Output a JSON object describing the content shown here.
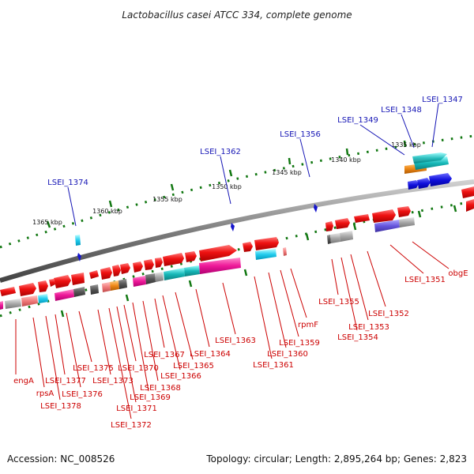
{
  "title": "Lactobacillus casei ATCC 334, complete genome",
  "accession": "Accession: NC_008526",
  "summary": "Topology: circular; Length: 2,895,264 bp; Genes: 2,823",
  "colors": {
    "forward_gene": "#ee1111",
    "label_blue": "#1515b5",
    "label_red": "#cc0000",
    "backbone": "#808080",
    "scale_green": "#117711"
  },
  "scale_labels": [
    "1335 kbp",
    "1340 kbp",
    "1345 kbp",
    "1350 kbp",
    "1355 kbp",
    "1360 kbp",
    "1365 kbp"
  ],
  "top_labels": [
    "LSEI_1347",
    "LSEI_1348",
    "LSEI_1349",
    "LSEI_1356",
    "LSEI_1362",
    "LSEI_1374"
  ],
  "bottom_labels": [
    "obgE",
    "LSEI_1351",
    "LSEI_1352",
    "LSEI_1353",
    "LSEI_1354",
    "LSEI_1355",
    "rpmF",
    "LSEI_1359",
    "LSEI_1360",
    "LSEI_1361",
    "LSEI_1363",
    "LSEI_1364",
    "LSEI_1365",
    "LSEI_1366",
    "LSEI_1367",
    "LSEI_1368",
    "LSEI_1369",
    "LSEI_1370",
    "LSEI_1371",
    "LSEI_1372",
    "LSEI_1373",
    "LSEI_1375",
    "LSEI_1376",
    "LSEI_1377",
    "LSEI_1378",
    "rpsA",
    "engA"
  ]
}
